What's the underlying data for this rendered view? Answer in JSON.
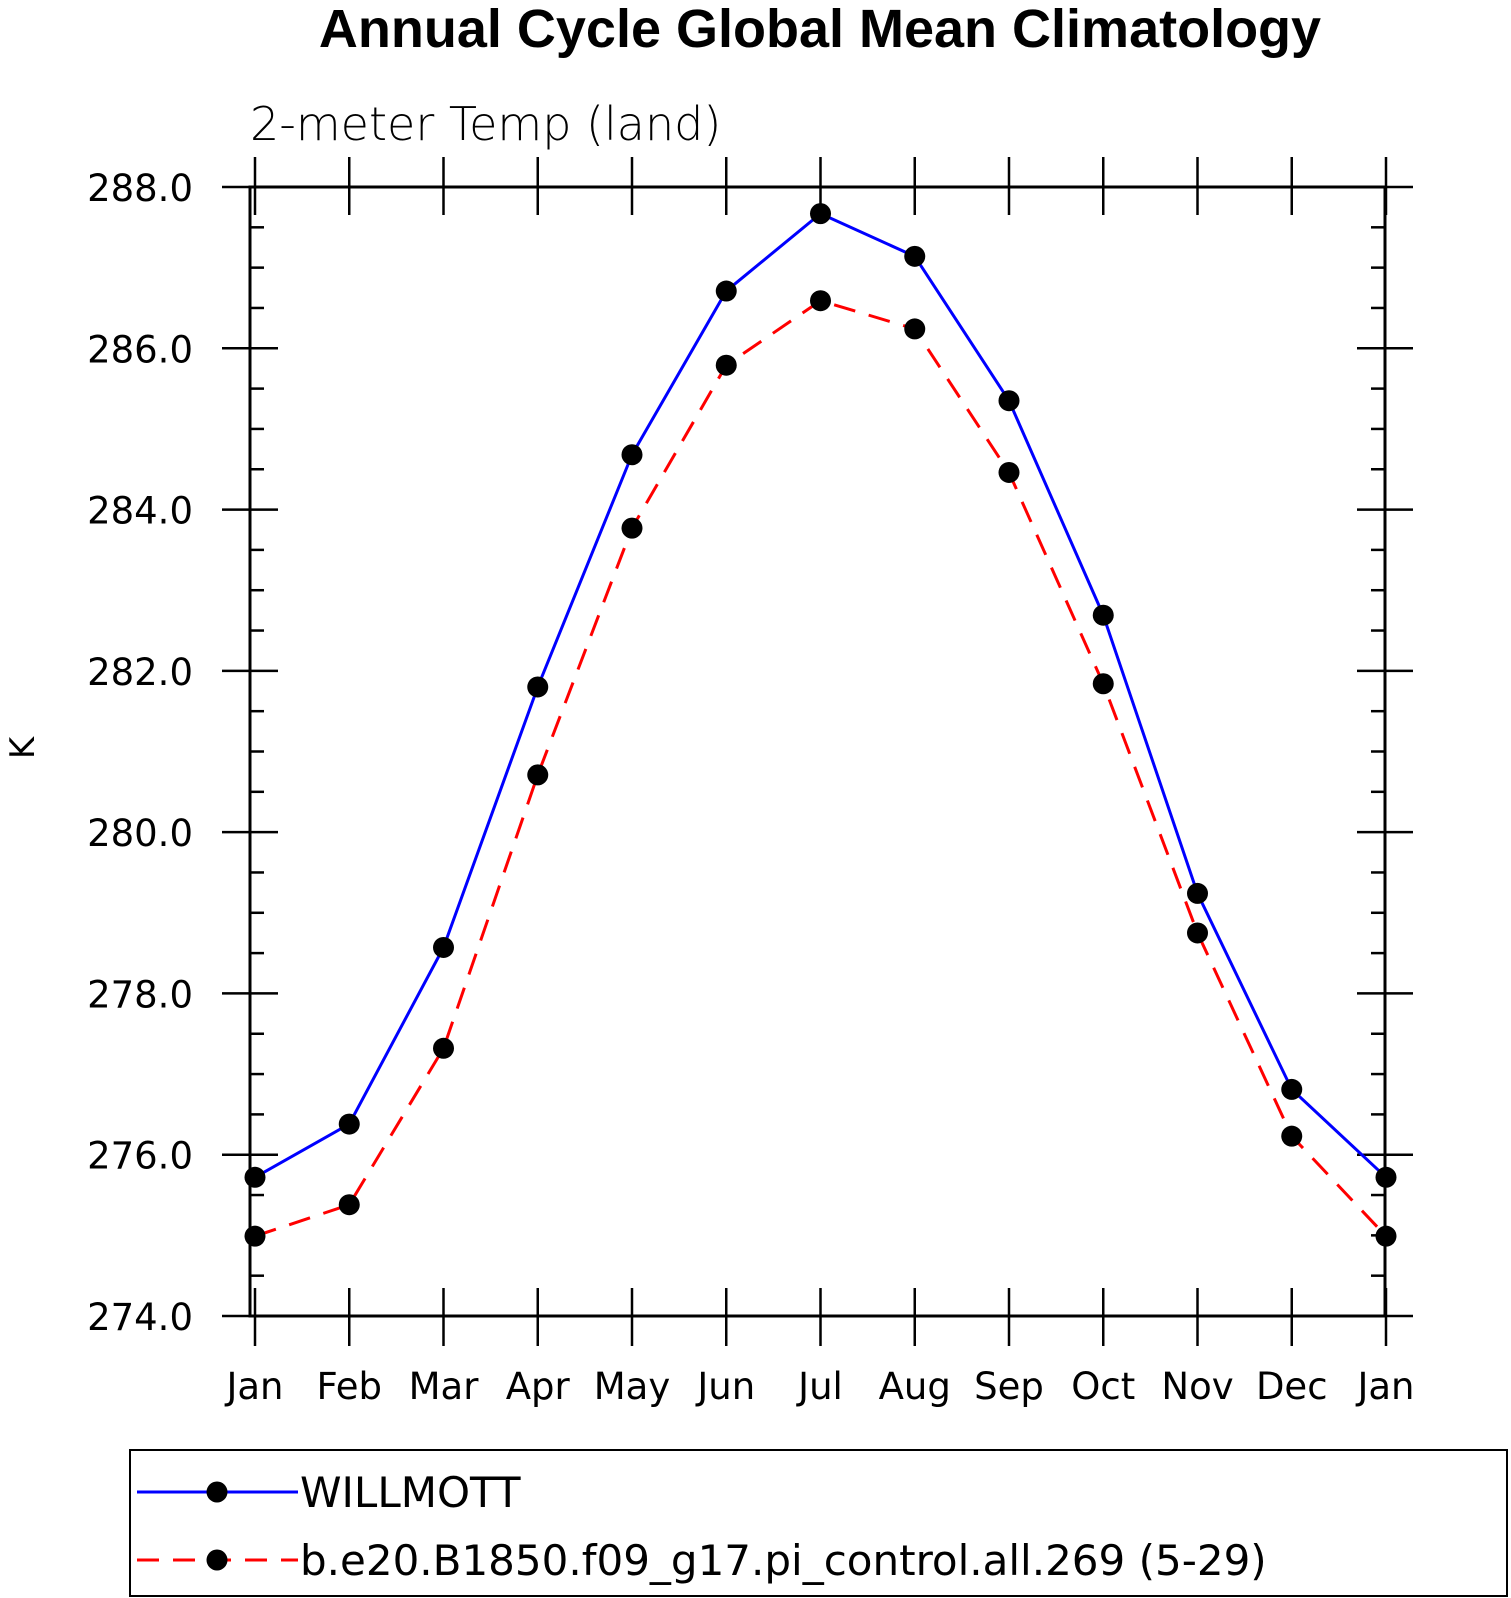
{
  "chart_data": {
    "type": "line",
    "title": "Annual Cycle Global Mean Climatology",
    "subtitle": "2-meter Temp (land)",
    "xlabel": "",
    "ylabel": "K",
    "categories": [
      "Jan",
      "Feb",
      "Mar",
      "Apr",
      "May",
      "Jun",
      "Jul",
      "Aug",
      "Sep",
      "Oct",
      "Nov",
      "Dec",
      "Jan"
    ],
    "ylim": [
      274.0,
      288.0
    ],
    "yticks": [
      "274.0",
      "276.0",
      "278.0",
      "280.0",
      "282.0",
      "284.0",
      "286.0",
      "288.0"
    ],
    "grid": false,
    "legend_position": "bottom",
    "series": [
      {
        "name": "WILLMOTT",
        "color": "#0000ff",
        "line_style": "solid",
        "marker": "filled-circle",
        "values": [
          275.72,
          276.38,
          278.57,
          281.8,
          284.68,
          286.71,
          287.67,
          287.14,
          285.35,
          282.69,
          279.24,
          276.81,
          275.72
        ]
      },
      {
        "name": "b.e20.B1850.f09_g17.pi_control.all.269 (5-29)",
        "color": "#ff0000",
        "line_style": "dashed",
        "marker": "filled-circle",
        "values": [
          274.99,
          275.38,
          277.32,
          280.71,
          283.77,
          285.79,
          286.59,
          286.24,
          284.46,
          281.84,
          278.75,
          276.23,
          274.99
        ]
      }
    ]
  }
}
